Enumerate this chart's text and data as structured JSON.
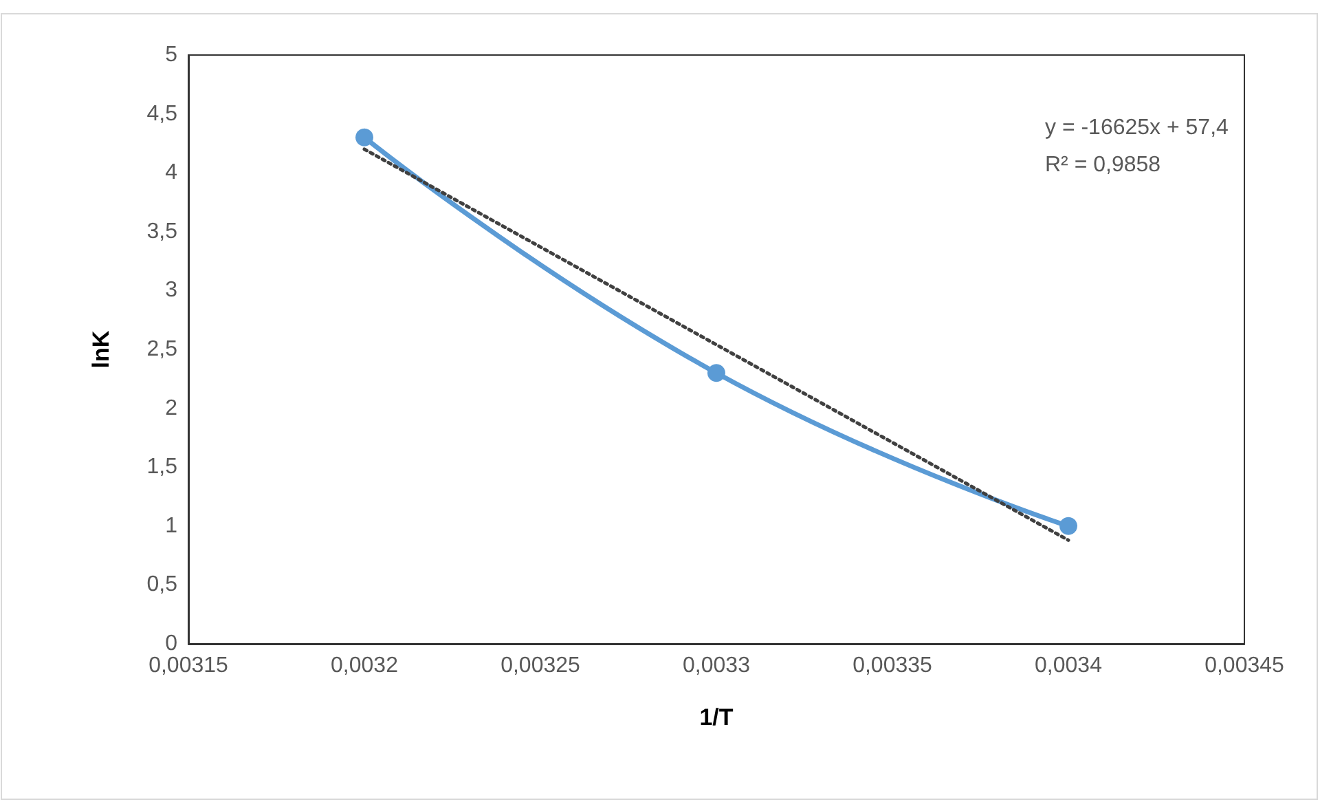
{
  "chart_data": {
    "type": "line",
    "xlabel": "1/T",
    "ylabel": "lnK",
    "x": [
      0.0032,
      0.0033,
      0.0034
    ],
    "series": [
      {
        "color": "#5b9bd5",
        "values": [
          4.3,
          2.3,
          1.0
        ],
        "marker": "circle",
        "line_style": "solid"
      },
      {
        "type": "line",
        "color": "#404040",
        "x": [
          0.0032,
          0.0034
        ],
        "values": [
          4.2,
          0.88
        ],
        "marker": "none",
        "line_style": "dotted"
      }
    ],
    "xlim": [
      0.00315,
      0.00345
    ],
    "xticks": [
      {
        "value": 0.00315,
        "label": "0,00315"
      },
      {
        "value": 0.0032,
        "label": "0,0032"
      },
      {
        "value": 0.00325,
        "label": "0,00325"
      },
      {
        "value": 0.0033,
        "label": "0,0033"
      },
      {
        "value": 0.00335,
        "label": "0,00335"
      },
      {
        "value": 0.0034,
        "label": "0,0034"
      },
      {
        "value": 0.00345,
        "label": "0,00345"
      }
    ],
    "ylim": [
      0,
      5
    ],
    "yticks": [
      0,
      {
        "value": 0.5,
        "label": "0,5"
      },
      1,
      {
        "value": 1.5,
        "label": "1,5"
      },
      2,
      {
        "value": 2.5,
        "label": "2,5"
      },
      3,
      {
        "value": 3.5,
        "label": "3,5"
      },
      4,
      {
        "value": 4.5,
        "label": "4,5"
      },
      5
    ],
    "annotations": [
      "y = -16625x + 57,4",
      "R² = 0,9858"
    ],
    "grid": false
  }
}
